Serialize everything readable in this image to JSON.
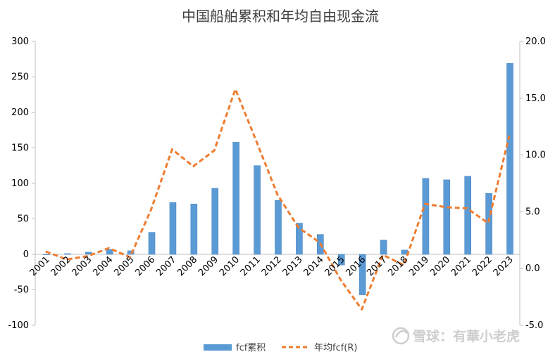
{
  "chart_data": {
    "type": "bar",
    "title": "中国船舶累积和年均自由现金流",
    "categories": [
      "2001",
      "2002",
      "2003",
      "2004",
      "2005",
      "2006",
      "2007",
      "2008",
      "2009",
      "2010",
      "2011",
      "2012",
      "2013",
      "2014",
      "2015",
      "2016",
      "2017",
      "2018",
      "2019",
      "2020",
      "2021",
      "2022",
      "2023"
    ],
    "series": [
      {
        "name": "fcf累积",
        "type": "bar",
        "axis": "left",
        "color": "#5b9bd5",
        "values": [
          0,
          1,
          3,
          7,
          5,
          31,
          73,
          71,
          93,
          158,
          125,
          76,
          44,
          28,
          -15,
          -57,
          20,
          6,
          107,
          105,
          110,
          86,
          269
        ]
      },
      {
        "name": "年均fcf(R)",
        "type": "line",
        "axis": "right",
        "style": "dashed",
        "color": "#ed7d31",
        "values": [
          1.5,
          0.8,
          1.1,
          1.8,
          1.0,
          5.2,
          10.5,
          9.0,
          10.4,
          15.8,
          11.2,
          6.5,
          3.6,
          2.3,
          -1.0,
          -3.6,
          1.2,
          0.3,
          5.7,
          5.4,
          5.3,
          4.0,
          11.7
        ]
      }
    ],
    "yaxis_left": {
      "range": [
        -100,
        300
      ],
      "step": 50,
      "ticks": [
        "-100",
        "-50",
        "0",
        "50",
        "100",
        "150",
        "200",
        "250",
        "300"
      ]
    },
    "yaxis_right": {
      "range": [
        -5,
        20
      ],
      "step": 5,
      "ticks": [
        "-5.0",
        "0.0",
        "5.0",
        "10.0",
        "15.0",
        "20.0"
      ]
    },
    "grid": false,
    "legend_position": "bottom"
  },
  "watermark": {
    "text": "雪球：有華小老虎"
  }
}
